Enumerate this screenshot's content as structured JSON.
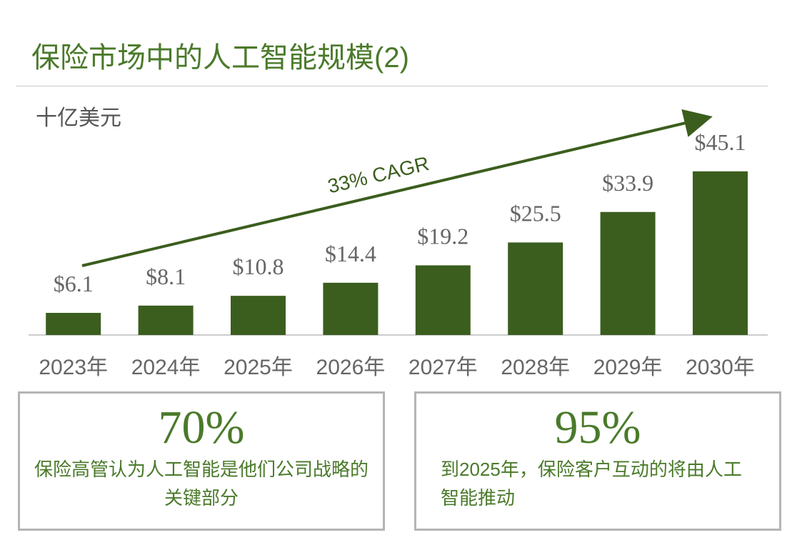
{
  "chart_data": {
    "type": "bar",
    "title": "保险市场中的人工智能规模(2)",
    "unit_label": "十亿美元",
    "annotation": "33% CAGR",
    "categories": [
      "2023年",
      "2024年",
      "2025年",
      "2026年",
      "2027年",
      "2028年",
      "2029年",
      "2030年"
    ],
    "values": [
      6.1,
      8.1,
      10.8,
      14.4,
      19.2,
      25.5,
      33.9,
      45.1
    ],
    "value_labels": [
      "$6.1",
      "$8.1",
      "$10.8",
      "$14.4",
      "$19.2",
      "$25.5",
      "$33.9",
      "$45.1"
    ],
    "color": "#3b5e1e"
  },
  "stats": [
    {
      "value": "70%",
      "text": "保险高管认为人工智能是他们公司战略的关键部分"
    },
    {
      "value": "95%",
      "text": "到2025年，保险客户互动的将由人工智能推动"
    }
  ]
}
